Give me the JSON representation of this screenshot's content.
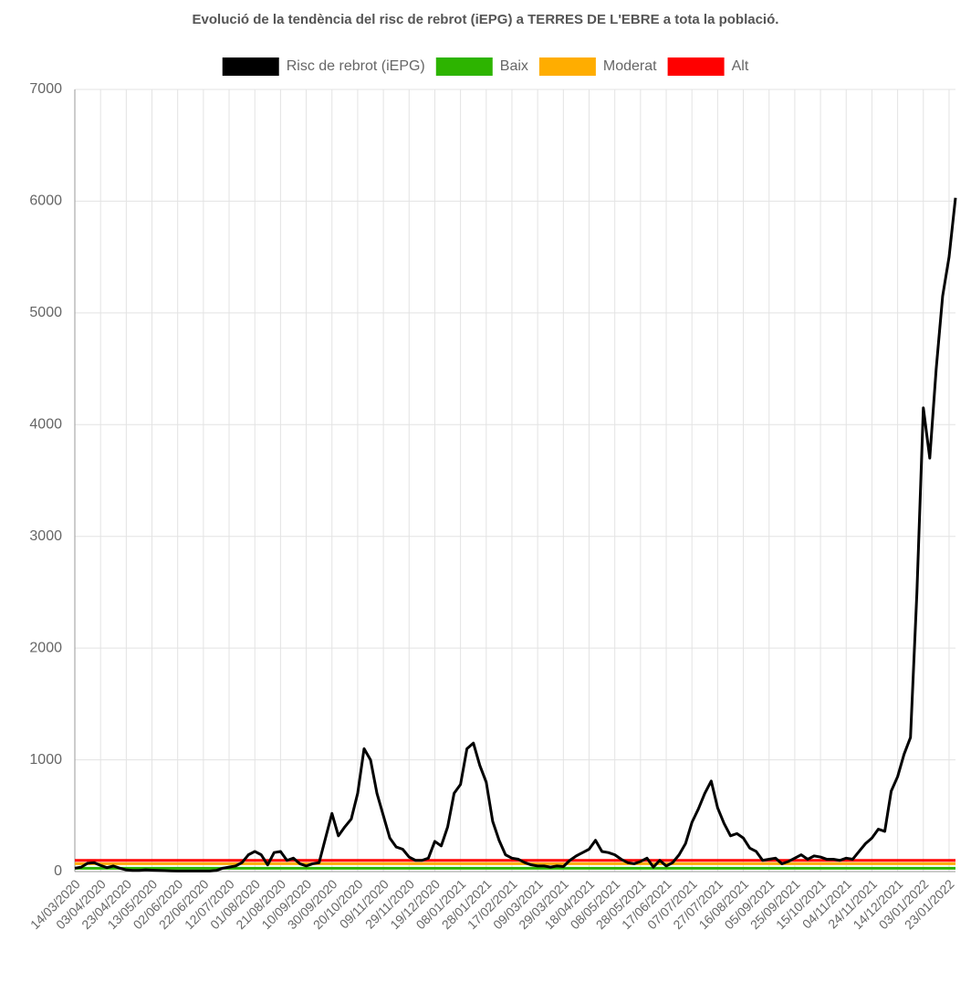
{
  "chart_data": {
    "type": "line",
    "title": "Evolució de la tendència del risc de rebrot (iEPG) a TERRES DE L'EBRE a tota la població.",
    "categories": [
      "14/03/2020",
      null,
      null,
      null,
      "03/04/2020",
      null,
      null,
      null,
      "23/04/2020",
      null,
      null,
      null,
      "13/05/2020",
      null,
      null,
      null,
      "02/06/2020",
      null,
      null,
      null,
      "22/06/2020",
      null,
      null,
      null,
      "12/07/2020",
      null,
      null,
      null,
      "01/08/2020",
      null,
      null,
      null,
      "21/08/2020",
      null,
      null,
      null,
      "10/09/2020",
      null,
      null,
      null,
      "30/09/2020",
      null,
      null,
      null,
      "20/10/2020",
      null,
      null,
      null,
      "09/11/2020",
      null,
      null,
      null,
      "29/11/2020",
      null,
      null,
      null,
      "19/12/2020",
      null,
      null,
      null,
      "08/01/2021",
      null,
      null,
      null,
      "28/01/2021",
      null,
      null,
      null,
      "17/02/2021",
      null,
      null,
      null,
      "09/03/2021",
      null,
      null,
      null,
      "29/03/2021",
      null,
      null,
      null,
      "18/04/2021",
      null,
      null,
      null,
      "08/05/2021",
      null,
      null,
      null,
      "28/05/2021",
      null,
      null,
      null,
      "17/06/2021",
      null,
      null,
      null,
      "07/07/2021",
      null,
      null,
      null,
      "27/07/2021",
      null,
      null,
      null,
      "16/08/2021",
      null,
      null,
      null,
      "05/09/2021",
      null,
      null,
      null,
      "25/09/2021",
      null,
      null,
      null,
      "15/10/2021",
      null,
      null,
      null,
      "04/11/2021",
      null,
      null,
      null,
      "24/11/2021",
      null,
      null,
      null,
      "14/12/2021",
      null,
      null,
      null,
      "03/01/2022",
      null,
      null,
      null,
      "23/01/2022",
      null
    ],
    "series": [
      {
        "name": "Risc de rebrot (iEPG)",
        "color": "#000000",
        "values": [
          30,
          40,
          75,
          80,
          55,
          35,
          50,
          30,
          15,
          10,
          10,
          15,
          12,
          10,
          8,
          6,
          5,
          5,
          5,
          5,
          5,
          5,
          10,
          30,
          40,
          50,
          80,
          150,
          180,
          150,
          60,
          170,
          180,
          100,
          120,
          70,
          50,
          70,
          80,
          300,
          520,
          320,
          400,
          470,
          700,
          1100,
          1000,
          700,
          500,
          300,
          220,
          200,
          130,
          100,
          100,
          120,
          270,
          230,
          400,
          700,
          780,
          1100,
          1150,
          950,
          800,
          450,
          280,
          150,
          120,
          110,
          80,
          60,
          50,
          50,
          40,
          50,
          45,
          100,
          140,
          170,
          200,
          280,
          180,
          170,
          150,
          110,
          80,
          70,
          90,
          120,
          40,
          100,
          50,
          80,
          150,
          250,
          440,
          560,
          700,
          810,
          570,
          430,
          320,
          340,
          300,
          210,
          180,
          100,
          110,
          120,
          70,
          90,
          120,
          150,
          110,
          140,
          130,
          110,
          110,
          100,
          120,
          110,
          180,
          250,
          300,
          380,
          360,
          720,
          850,
          1050,
          1200,
          2500,
          4150,
          3700,
          4500,
          5150,
          5500,
          6030
        ]
      }
    ],
    "thresholds": [
      {
        "name": "Baix",
        "color": "#2db400",
        "value": 30
      },
      {
        "name": "Moderat",
        "color": "#ffad00",
        "value": 70
      },
      {
        "name": "Alt",
        "color": "#ff0000",
        "value": 100
      }
    ],
    "ylim": [
      0,
      7000
    ],
    "yticks": [
      0,
      1000,
      2000,
      3000,
      4000,
      5000,
      6000,
      7000
    ],
    "grid": true
  }
}
